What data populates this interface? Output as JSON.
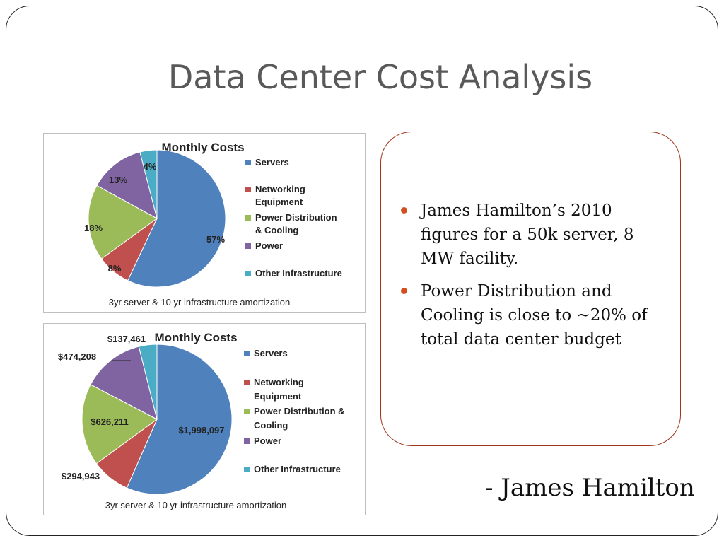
{
  "slide": {
    "title": "Data Center Cost Analysis",
    "bullets": [
      "James Hamilton’s 2010 figures for a 50k server, 8 MW facility.",
      "Power Distribution and Cooling is close to ~20% of total data center budget"
    ],
    "attribution": "- James Hamilton",
    "bullet_color": "#d2501f"
  },
  "chart_data": [
    {
      "type": "pie",
      "title": "Monthly Costs",
      "categories": [
        "Servers",
        "Networking Equipment",
        "Power Distribution & Cooling",
        "Power",
        "Other Infrastructure"
      ],
      "legend_labels": [
        [
          "Servers"
        ],
        [
          "Networking",
          "Equipment"
        ],
        [
          "Power Distribution",
          "& Cooling"
        ],
        [
          "Power"
        ],
        [
          "Other Infrastructure"
        ]
      ],
      "values": [
        57,
        8,
        18,
        13,
        4
      ],
      "data_labels": [
        "57%",
        "8%",
        "18%",
        "13%",
        "4%"
      ],
      "colors": [
        "#4f81bd",
        "#c0504d",
        "#9bbb59",
        "#8064a2",
        "#4bacc6"
      ],
      "legend": "right",
      "footnote": "3yr server & 10 yr infrastructure amortization"
    },
    {
      "type": "pie",
      "title": "Monthly Costs",
      "categories": [
        "Servers",
        "Networking Equipment",
        "Power Distribution & Cooling",
        "Power",
        "Other Infrastructure"
      ],
      "legend_labels": [
        [
          "Servers"
        ],
        [
          "Networking",
          "Equipment"
        ],
        [
          "Power Distribution &",
          "Cooling"
        ],
        [
          "Power"
        ],
        [
          "Other Infrastructure"
        ]
      ],
      "values": [
        1998097,
        294943,
        626211,
        474208,
        137461
      ],
      "data_labels": [
        "$1,998,097",
        "$294,943",
        "$626,211",
        "$474,208",
        "$137,461"
      ],
      "colors": [
        "#4f81bd",
        "#c0504d",
        "#9bbb59",
        "#8064a2",
        "#4bacc6"
      ],
      "legend": "right",
      "footnote": "3yr server & 10 yr infrastructure amortization"
    }
  ]
}
